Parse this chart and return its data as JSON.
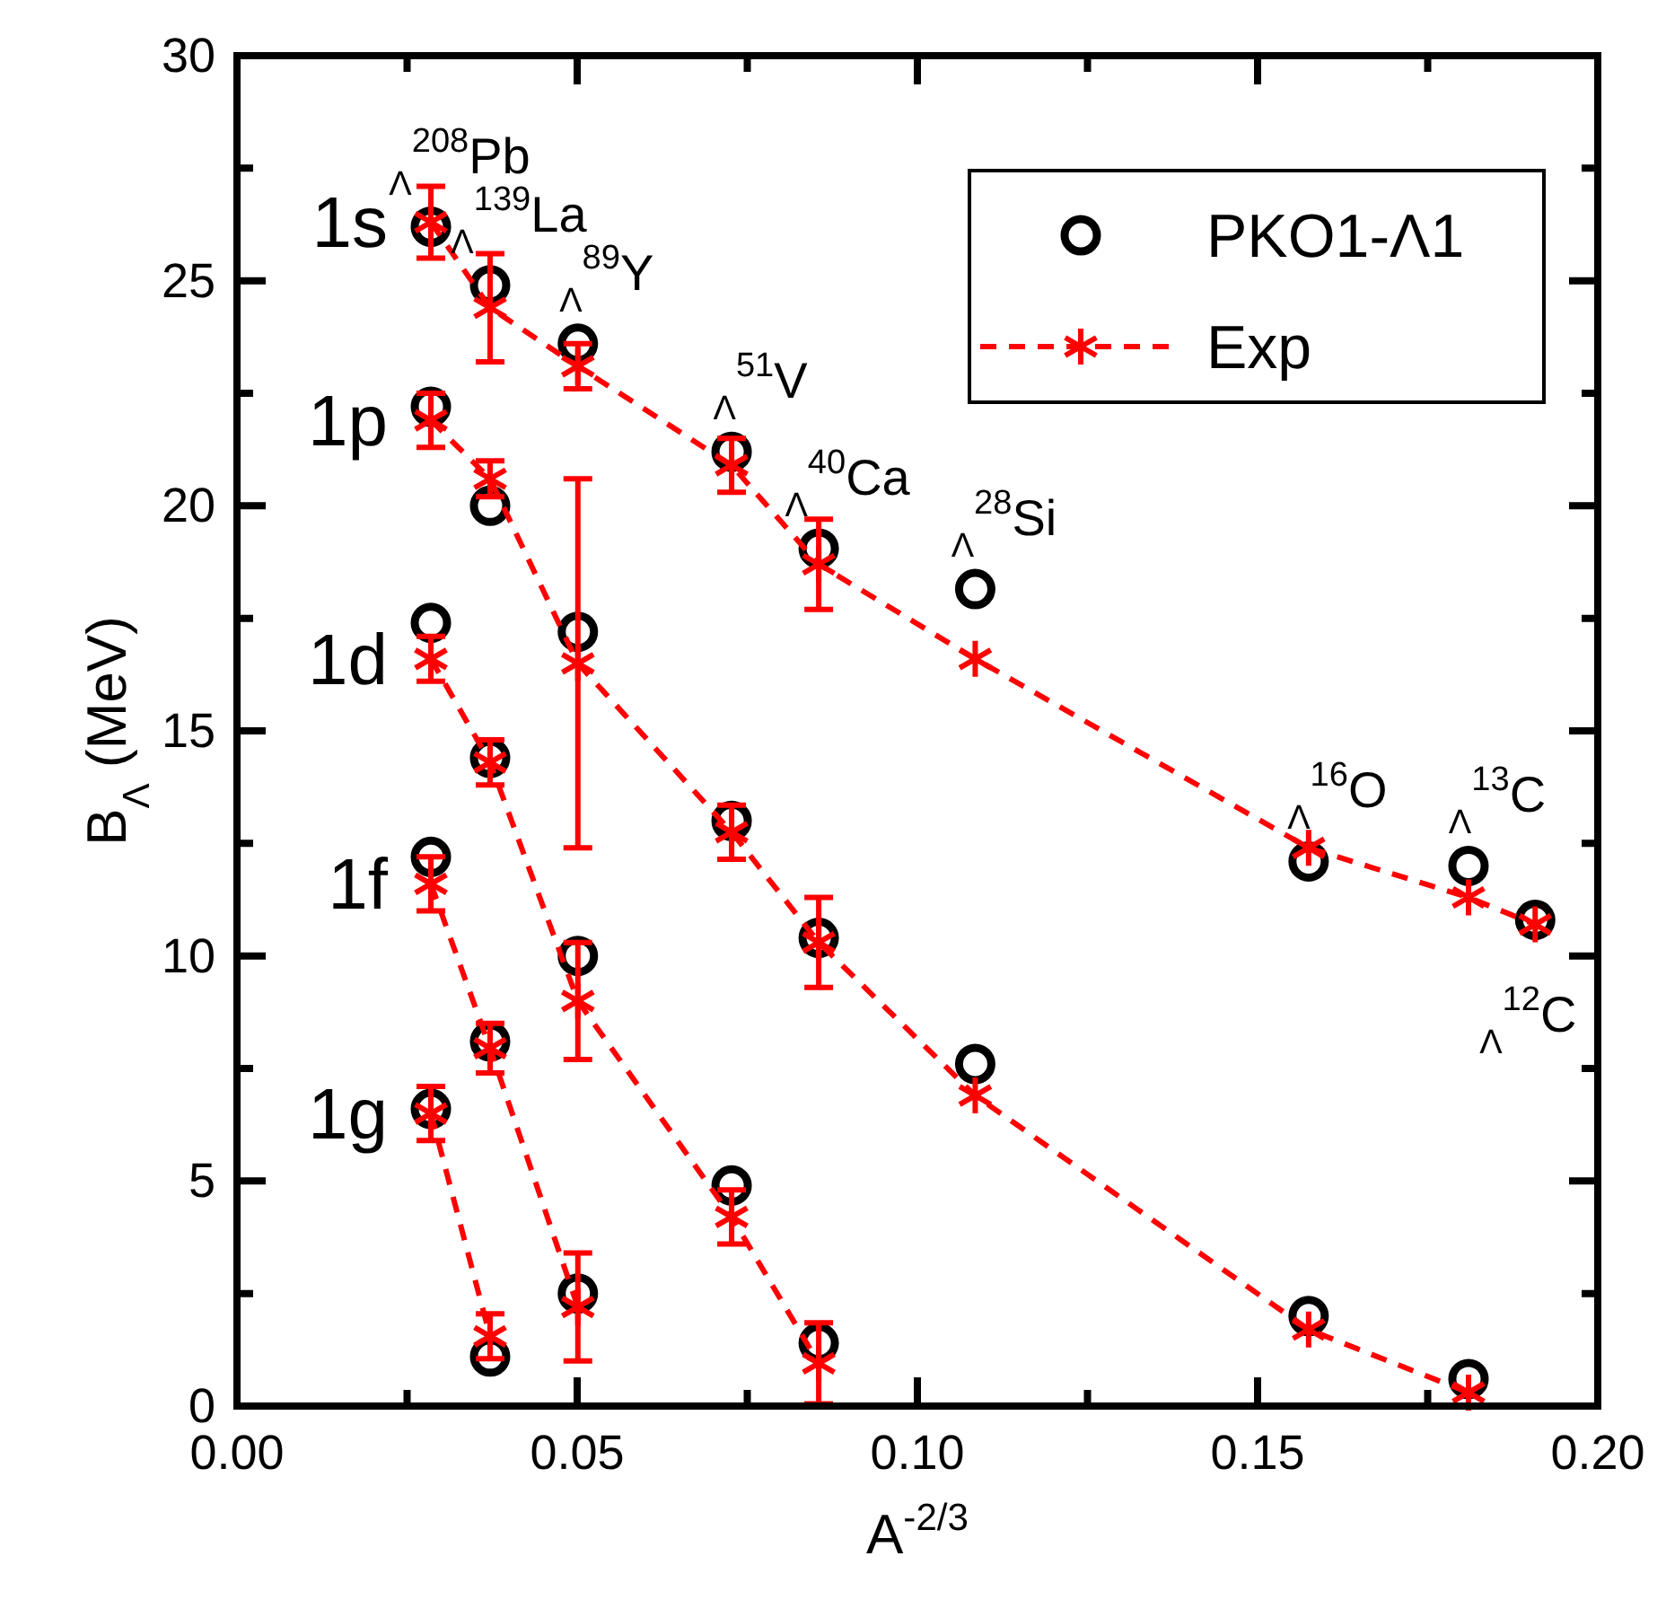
{
  "chart_data": {
    "type": "line",
    "xlabel": "A$^{-2/3}$",
    "ylabel": "B$_{Λ}$ (MeV)",
    "xlim": [
      0,
      0.2
    ],
    "ylim": [
      0,
      30
    ],
    "xticks": [
      {
        "value": 0,
        "label": "0.00"
      },
      {
        "value": 0.025,
        "label": null
      },
      {
        "value": 0.05,
        "label": "0.05"
      },
      {
        "value": 0.075,
        "label": null
      },
      {
        "value": 0.1,
        "label": "0.10"
      },
      {
        "value": 0.125,
        "label": null
      },
      {
        "value": 0.15,
        "label": "0.15"
      },
      {
        "value": 0.175,
        "label": null
      },
      {
        "value": 0.2,
        "label": "0.20"
      }
    ],
    "yticks": [
      0,
      {
        "value": 2.5,
        "label": null
      },
      5,
      {
        "value": 7.5,
        "label": null
      },
      10,
      {
        "value": 12.5,
        "label": null
      },
      15,
      {
        "value": 17.5,
        "label": null
      },
      20,
      {
        "value": 22.5,
        "label": null
      },
      25,
      {
        "value": 27.5,
        "label": null
      },
      30
    ],
    "legend": "top right",
    "series": [
      {
        "name": "PKO1-Λ1",
        "type": "scatter",
        "marker": "circle",
        "color": "#000000",
        "x": [
          0.0285,
          0.0372,
          0.0501,
          0.0727,
          0.0855,
          0.1085,
          0.1575,
          0.181,
          0.1908,
          0.0285,
          0.0372,
          0.0501,
          0.0727,
          0.0855,
          0.1085,
          0.1575,
          0.181,
          0.0285,
          0.0372,
          0.0501,
          0.0727,
          0.0855,
          0.0285,
          0.0372,
          0.0501,
          0.0285,
          0.0372
        ],
        "values": [
          26.2,
          24.9,
          23.6,
          21.2,
          19.05,
          18.15,
          12.1,
          12.0,
          10.8,
          22.2,
          20.0,
          17.2,
          13.0,
          10.4,
          7.6,
          2.0,
          0.6,
          17.4,
          14.4,
          10.0,
          4.9,
          1.4,
          12.2,
          8.1,
          2.5,
          6.6,
          1.1
        ]
      },
      {
        "name": "Exp",
        "marker": "cross",
        "line_style": "dashed",
        "color": "#ff0000",
        "x": [
          0.0285,
          0.0372,
          0.0501,
          0.0727,
          0.0855,
          0.1085,
          0.1575,
          0.181,
          0.1908
        ],
        "values": [
          26.3,
          24.4,
          23.1,
          20.9,
          18.7,
          16.6,
          12.4,
          11.3,
          10.7
        ],
        "errors": [
          0.8,
          1.2,
          0.5,
          0.6,
          1.0,
          null,
          null,
          null,
          null
        ]
      },
      {
        "marker": "cross",
        "line_style": "dashed",
        "color": "#ff0000",
        "x": [
          0.0285,
          0.0372,
          0.0501,
          0.0727,
          0.0855,
          0.1085,
          0.1575,
          0.181
        ],
        "values": [
          21.9,
          20.6,
          16.5,
          12.75,
          10.3,
          6.9,
          1.7,
          0.3
        ],
        "errors": [
          0.6,
          0.4,
          4.1,
          0.6,
          1.0,
          null,
          null,
          null
        ]
      },
      {
        "marker": "cross",
        "line_style": "dashed",
        "color": "#ff0000",
        "x": [
          0.0285,
          0.0372,
          0.0501,
          0.0727,
          0.0855
        ],
        "values": [
          16.6,
          14.3,
          9.0,
          4.2,
          0.95
        ],
        "errors": [
          0.5,
          0.5,
          1.3,
          0.6,
          0.9
        ]
      },
      {
        "marker": "cross",
        "line_style": "dashed",
        "color": "#ff0000",
        "x": [
          0.0285,
          0.0372,
          0.0501
        ],
        "values": [
          11.6,
          7.95,
          2.2
        ],
        "errors": [
          0.6,
          0.55,
          1.2
        ]
      },
      {
        "marker": "cross",
        "line_style": "dashed",
        "color": "#ff0000",
        "x": [
          0.0285,
          0.0372
        ],
        "values": [
          6.5,
          1.55
        ],
        "errors": [
          0.6,
          0.5
        ]
      }
    ],
    "annotations": [
      "1s",
      "1p",
      "1d",
      "1f",
      "1g",
      {
        "text": "$_{Λ}$$^{208}$Pb",
        "x": 0.0285,
        "y": 26.2
      },
      {
        "text": "$_{Λ}$$^{139}$La",
        "x": 0.0372,
        "y": 24.9
      },
      {
        "text": "$_{Λ}$$^{89}$Y",
        "x": 0.0501,
        "y": 23.6
      },
      {
        "text": "$_{Λ}$$^{51}$V",
        "x": 0.0727,
        "y": 21.2
      },
      {
        "text": "$_{Λ}$$^{40}$Ca",
        "x": 0.0855,
        "y": 19.05
      },
      {
        "text": "$_{Λ}$$^{28}$Si",
        "x": 0.1085,
        "y": 18.15
      },
      {
        "text": "$_{Λ}$$^{16}$O",
        "x": 0.1575,
        "y": 12.1
      },
      {
        "text": "$_{Λ}$$^{13}$C",
        "x": 0.181,
        "y": 12.0
      },
      {
        "text": "$_{Λ}$$^{12}$C",
        "x": 0.1908,
        "y": 10.8
      }
    ]
  }
}
